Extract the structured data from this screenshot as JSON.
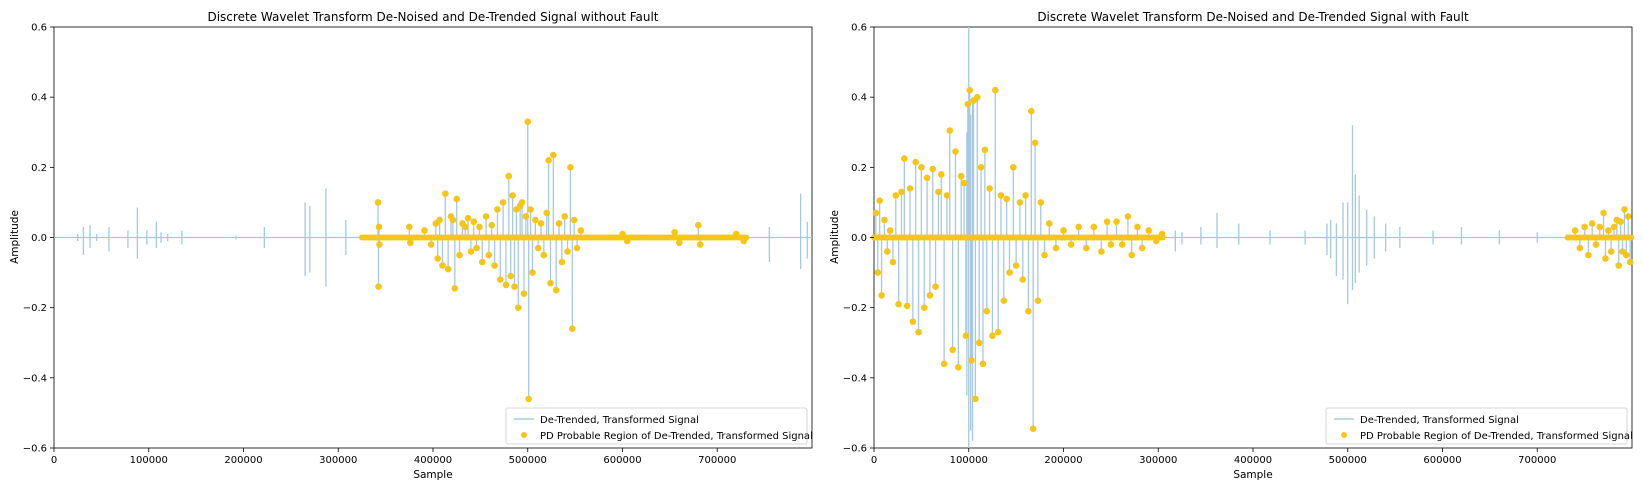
{
  "chart_data": [
    {
      "type": "line",
      "title": "Discrete Wavelet Transform De-Noised and De-Trended Signal without Fault",
      "xlabel": "Sample",
      "ylabel": "Amplitude",
      "xlim": [
        0,
        800000
      ],
      "ylim": [
        -0.6,
        0.6
      ],
      "xticks": [
        0,
        100000,
        200000,
        300000,
        400000,
        500000,
        600000,
        700000
      ],
      "yticks": [
        -0.6,
        -0.4,
        -0.2,
        0.0,
        0.2,
        0.4,
        0.6
      ],
      "xtick_labels": [
        "0",
        "100000",
        "200000",
        "300000",
        "400000",
        "500000",
        "600000",
        "700000"
      ],
      "ytick_labels": [
        "−0.6",
        "−0.4",
        "−0.2",
        "0.0",
        "0.2",
        "0.4",
        "0.6"
      ],
      "legend_placement": "lower right",
      "grid": false,
      "series": [
        {
          "name": "De-Trended, Transformed Signal",
          "kind": "line",
          "color": "#a6c8e4",
          "spikes": [
            [
              25000,
              0.01,
              -0.01
            ],
            [
              31000,
              0.03,
              -0.05
            ],
            [
              38000,
              0.035,
              -0.03
            ],
            [
              45000,
              0.01,
              -0.01
            ],
            [
              58000,
              0.03,
              -0.04
            ],
            [
              78000,
              0.02,
              -0.03
            ],
            [
              88000,
              0.085,
              -0.06
            ],
            [
              98000,
              0.02,
              -0.02
            ],
            [
              108000,
              0.045,
              -0.03
            ],
            [
              113000,
              0.015,
              -0.015
            ],
            [
              120000,
              0.01,
              -0.01
            ],
            [
              135000,
              0.02,
              -0.02
            ],
            [
              192000,
              0.005,
              -0.005
            ],
            [
              222000,
              0.03,
              -0.03
            ],
            [
              265000,
              0.1,
              -0.11
            ],
            [
              270000,
              0.09,
              -0.1
            ],
            [
              287000,
              0.14,
              -0.14
            ],
            [
              308000,
              0.05,
              -0.05
            ],
            [
              755000,
              0.03,
              -0.07
            ],
            [
              788000,
              0.125,
              -0.09
            ],
            [
              795000,
              0.045,
              -0.06
            ]
          ]
        },
        {
          "name": "PD Probable Region of De-Trended, Transformed Signal",
          "kind": "scatter",
          "color": "#f5c518",
          "region": [
            325000,
            732000
          ],
          "points": [
            [
              342000,
              0.1
            ],
            [
              342500,
              -0.14
            ],
            [
              343000,
              0.03
            ],
            [
              343500,
              -0.02
            ],
            [
              375000,
              0.03
            ],
            [
              376000,
              -0.015
            ],
            [
              391000,
              0.02
            ],
            [
              398000,
              -0.02
            ],
            [
              403000,
              0.04
            ],
            [
              405000,
              -0.06
            ],
            [
              407000,
              0.05
            ],
            [
              410000,
              -0.08
            ],
            [
              413000,
              0.125
            ],
            [
              416000,
              -0.09
            ],
            [
              419000,
              0.06
            ],
            [
              421000,
              0.05
            ],
            [
              423000,
              -0.145
            ],
            [
              425000,
              0.11
            ],
            [
              428000,
              -0.05
            ],
            [
              431000,
              0.04
            ],
            [
              434000,
              0.03
            ],
            [
              437000,
              0.055
            ],
            [
              440000,
              -0.04
            ],
            [
              443000,
              0.045
            ],
            [
              446000,
              -0.03
            ],
            [
              449000,
              0.03
            ],
            [
              452000,
              -0.07
            ],
            [
              456000,
              0.06
            ],
            [
              459000,
              -0.05
            ],
            [
              462000,
              0.035
            ],
            [
              465000,
              -0.08
            ],
            [
              468000,
              0.08
            ],
            [
              471000,
              -0.12
            ],
            [
              474000,
              0.1
            ],
            [
              477000,
              -0.135
            ],
            [
              480000,
              0.175
            ],
            [
              482000,
              -0.11
            ],
            [
              484000,
              0.12
            ],
            [
              486000,
              -0.14
            ],
            [
              488000,
              0.08
            ],
            [
              490000,
              -0.2
            ],
            [
              492000,
              0.09
            ],
            [
              494000,
              0.1
            ],
            [
              496000,
              -0.16
            ],
            [
              498000,
              0.06
            ],
            [
              500000,
              0.33
            ],
            [
              501000,
              -0.46
            ],
            [
              503000,
              0.08
            ],
            [
              505000,
              -0.1
            ],
            [
              508000,
              0.05
            ],
            [
              511000,
              -0.03
            ],
            [
              514000,
              0.04
            ],
            [
              517000,
              -0.05
            ],
            [
              520000,
              0.07
            ],
            [
              522000,
              0.22
            ],
            [
              524000,
              -0.13
            ],
            [
              527000,
              0.235
            ],
            [
              530000,
              -0.15
            ],
            [
              533000,
              0.04
            ],
            [
              536000,
              -0.07
            ],
            [
              539000,
              0.06
            ],
            [
              542000,
              -0.04
            ],
            [
              545000,
              0.2
            ],
            [
              547000,
              -0.26
            ],
            [
              549000,
              0.05
            ],
            [
              552000,
              -0.03
            ],
            [
              556000,
              0.02
            ],
            [
              600000,
              0.01
            ],
            [
              605000,
              -0.01
            ],
            [
              655000,
              0.015
            ],
            [
              660000,
              -0.015
            ],
            [
              680000,
              0.035
            ],
            [
              682000,
              -0.02
            ],
            [
              720000,
              0.01
            ],
            [
              728000,
              -0.01
            ]
          ]
        }
      ]
    },
    {
      "type": "line",
      "title": "Discrete Wavelet Transform De-Noised and De-Trended Signal with Fault",
      "xlabel": "Sample",
      "ylabel": "Amplitude",
      "xlim": [
        0,
        800000
      ],
      "ylim": [
        -0.6,
        0.6
      ],
      "xticks": [
        0,
        100000,
        200000,
        300000,
        400000,
        500000,
        600000,
        700000
      ],
      "yticks": [
        -0.6,
        -0.4,
        -0.2,
        0.0,
        0.2,
        0.4,
        0.6
      ],
      "xtick_labels": [
        "0",
        "100000",
        "200000",
        "300000",
        "400000",
        "500000",
        "600000",
        "700000"
      ],
      "ytick_labels": [
        "−0.6",
        "−0.4",
        "−0.2",
        "0.0",
        "0.2",
        "0.4",
        "0.6"
      ],
      "legend_placement": "lower right",
      "grid": false,
      "series": [
        {
          "name": "De-Trended, Transformed Signal",
          "kind": "line",
          "color": "#a6c8e4",
          "spikes": [
            [
              100000,
              0.65,
              -0.6
            ],
            [
              102000,
              0.35,
              -0.55
            ],
            [
              104000,
              0.4,
              -0.58
            ],
            [
              98000,
              0.3,
              -0.45
            ],
            [
              318000,
              0.02,
              -0.04
            ],
            [
              325000,
              0.015,
              -0.02
            ],
            [
              345000,
              0.03,
              -0.02
            ],
            [
              362000,
              0.07,
              -0.03
            ],
            [
              385000,
              0.04,
              -0.02
            ],
            [
              418000,
              0.02,
              -0.02
            ],
            [
              455000,
              0.02,
              -0.02
            ],
            [
              478000,
              0.04,
              -0.05
            ],
            [
              482000,
              0.05,
              -0.06
            ],
            [
              488000,
              0.04,
              -0.11
            ],
            [
              495000,
              0.1,
              -0.12
            ],
            [
              500000,
              0.1,
              -0.19
            ],
            [
              505000,
              0.32,
              -0.15
            ],
            [
              508000,
              0.18,
              -0.13
            ],
            [
              512000,
              0.12,
              -0.1
            ],
            [
              520000,
              0.08,
              -0.08
            ],
            [
              528000,
              0.06,
              -0.06
            ],
            [
              540000,
              0.04,
              -0.04
            ],
            [
              555000,
              0.03,
              -0.03
            ],
            [
              590000,
              0.02,
              -0.02
            ],
            [
              620000,
              0.03,
              -0.02
            ],
            [
              660000,
              0.02,
              -0.02
            ],
            [
              700000,
              0.015,
              -0.015
            ]
          ]
        },
        {
          "name": "PD Probable Region of De-Trended, Transformed Signal",
          "kind": "scatter",
          "color": "#f5c518",
          "region": [
            0,
            305000
          ],
          "region2": [
            732000,
            800000
          ],
          "points": [
            [
              2000,
              0.07
            ],
            [
              4000,
              -0.1
            ],
            [
              6000,
              0.105
            ],
            [
              8000,
              -0.165
            ],
            [
              11000,
              0.05
            ],
            [
              14000,
              -0.04
            ],
            [
              17000,
              0.02
            ],
            [
              20000,
              -0.07
            ],
            [
              23000,
              0.12
            ],
            [
              26000,
              -0.19
            ],
            [
              29000,
              0.13
            ],
            [
              32000,
              0.225
            ],
            [
              35000,
              -0.195
            ],
            [
              38000,
              0.14
            ],
            [
              41000,
              -0.24
            ],
            [
              44000,
              0.215
            ],
            [
              47000,
              -0.27
            ],
            [
              50000,
              0.2
            ],
            [
              53000,
              -0.2
            ],
            [
              56000,
              0.17
            ],
            [
              59000,
              -0.165
            ],
            [
              62000,
              0.195
            ],
            [
              65000,
              -0.14
            ],
            [
              68000,
              0.13
            ],
            [
              71000,
              0.18
            ],
            [
              74000,
              -0.36
            ],
            [
              77000,
              0.12
            ],
            [
              80000,
              0.305
            ],
            [
              83000,
              -0.32
            ],
            [
              86000,
              0.245
            ],
            [
              89000,
              -0.37
            ],
            [
              92000,
              0.175
            ],
            [
              95000,
              0.155
            ],
            [
              97000,
              -0.28
            ],
            [
              99000,
              0.38
            ],
            [
              101000,
              0.42
            ],
            [
              103000,
              -0.35
            ],
            [
              105000,
              0.39
            ],
            [
              107000,
              -0.46
            ],
            [
              109000,
              0.4
            ],
            [
              111000,
              -0.3
            ],
            [
              113000,
              0.2
            ],
            [
              115000,
              -0.36
            ],
            [
              117000,
              0.25
            ],
            [
              119000,
              -0.21
            ],
            [
              122000,
              0.14
            ],
            [
              125000,
              -0.28
            ],
            [
              128000,
              0.42
            ],
            [
              131000,
              -0.27
            ],
            [
              134000,
              0.12
            ],
            [
              137000,
              -0.18
            ],
            [
              140000,
              0.11
            ],
            [
              143000,
              -0.1
            ],
            [
              147000,
              0.2
            ],
            [
              150000,
              -0.08
            ],
            [
              154000,
              0.1
            ],
            [
              157000,
              -0.12
            ],
            [
              160000,
              0.12
            ],
            [
              163000,
              -0.21
            ],
            [
              166000,
              0.36
            ],
            [
              168000,
              -0.545
            ],
            [
              170000,
              0.27
            ],
            [
              173000,
              -0.18
            ],
            [
              176000,
              0.1
            ],
            [
              180000,
              -0.05
            ],
            [
              185000,
              0.04
            ],
            [
              192000,
              -0.03
            ],
            [
              200000,
              0.02
            ],
            [
              208000,
              -0.02
            ],
            [
              216000,
              0.03
            ],
            [
              224000,
              -0.03
            ],
            [
              232000,
              0.03
            ],
            [
              240000,
              -0.04
            ],
            [
              246000,
              0.045
            ],
            [
              250000,
              -0.02
            ],
            [
              256000,
              0.045
            ],
            [
              262000,
              -0.02
            ],
            [
              268000,
              0.06
            ],
            [
              272000,
              -0.05
            ],
            [
              278000,
              0.03
            ],
            [
              283000,
              -0.03
            ],
            [
              290000,
              0.02
            ],
            [
              298000,
              -0.01
            ],
            [
              304000,
              0.01
            ],
            [
              740000,
              0.02
            ],
            [
              745000,
              -0.03
            ],
            [
              750000,
              0.03
            ],
            [
              754000,
              -0.05
            ],
            [
              758000,
              0.04
            ],
            [
              762000,
              -0.02
            ],
            [
              766000,
              0.03
            ],
            [
              770000,
              0.07
            ],
            [
              772000,
              -0.06
            ],
            [
              775000,
              0.02
            ],
            [
              778000,
              -0.04
            ],
            [
              781000,
              0.03
            ],
            [
              784000,
              0.05
            ],
            [
              786000,
              -0.08
            ],
            [
              788000,
              0.045
            ],
            [
              790000,
              -0.04
            ],
            [
              792000,
              0.08
            ],
            [
              794000,
              -0.05
            ],
            [
              796000,
              0.06
            ],
            [
              798000,
              -0.07
            ]
          ]
        }
      ]
    }
  ]
}
